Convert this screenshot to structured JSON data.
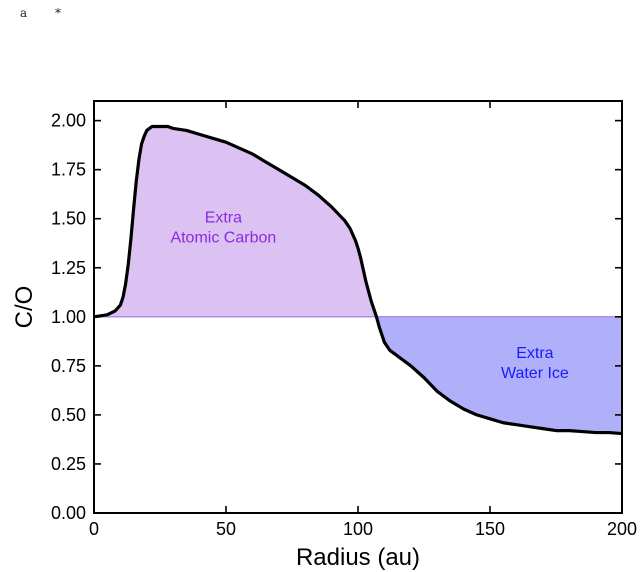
{
  "header": {
    "label": "a",
    "marker": "*"
  },
  "colors": {
    "carbon_fill": "#dcc2f2",
    "carbon_text": "#8a2be2",
    "ice_fill": "#b0b0fa",
    "ice_text": "#1a1aff",
    "ref_line": "#a88ff0",
    "curve": "#000000"
  },
  "chart_data": {
    "type": "line",
    "title": "",
    "xlabel": "Radius (au)",
    "ylabel": "C/O",
    "xlim": [
      0,
      200
    ],
    "ylim": [
      0,
      2.1
    ],
    "xticks": [
      0,
      50,
      100,
      150,
      200
    ],
    "yticks": [
      0.0,
      0.25,
      0.5,
      0.75,
      1.0,
      1.25,
      1.5,
      1.75,
      2.0
    ],
    "xtick_labels": [
      "0",
      "50",
      "100",
      "150",
      "200"
    ],
    "ytick_labels": [
      "0.00",
      "0.25",
      "0.50",
      "0.75",
      "1.00",
      "1.25",
      "1.50",
      "1.75",
      "2.00"
    ],
    "reference_y": 1.0,
    "grid": false,
    "series": [
      {
        "x": [
          0,
          5,
          8,
          10,
          11,
          12,
          13,
          14,
          15,
          16,
          17,
          18,
          19,
          20,
          21,
          22,
          23,
          25,
          28,
          30,
          35,
          40,
          45,
          50,
          55,
          60,
          65,
          70,
          75,
          80,
          85,
          90,
          95,
          97,
          99,
          100,
          101,
          102,
          103,
          104,
          105,
          106,
          107,
          108,
          109,
          110,
          112,
          115,
          118,
          120,
          125,
          130,
          135,
          140,
          145,
          150,
          155,
          160,
          165,
          170,
          175,
          180,
          185,
          190,
          195,
          200
        ],
        "y": [
          1.0,
          1.01,
          1.03,
          1.06,
          1.1,
          1.17,
          1.27,
          1.4,
          1.55,
          1.69,
          1.8,
          1.88,
          1.92,
          1.95,
          1.96,
          1.97,
          1.97,
          1.97,
          1.97,
          1.96,
          1.95,
          1.93,
          1.91,
          1.89,
          1.86,
          1.83,
          1.79,
          1.75,
          1.71,
          1.67,
          1.62,
          1.56,
          1.49,
          1.45,
          1.39,
          1.35,
          1.3,
          1.24,
          1.18,
          1.13,
          1.08,
          1.04,
          1.0,
          0.95,
          0.91,
          0.87,
          0.83,
          0.8,
          0.77,
          0.75,
          0.69,
          0.62,
          0.57,
          0.53,
          0.5,
          0.48,
          0.46,
          0.45,
          0.44,
          0.43,
          0.42,
          0.42,
          0.415,
          0.41,
          0.41,
          0.405
        ]
      }
    ],
    "annotations": [
      {
        "lines": [
          "Extra",
          "Atomic Carbon"
        ],
        "x": 49,
        "y": 1.46,
        "color_key": "carbon_text"
      },
      {
        "lines": [
          "Extra",
          "Water Ice"
        ],
        "x": 167,
        "y": 0.77,
        "color_key": "ice_text"
      }
    ]
  }
}
